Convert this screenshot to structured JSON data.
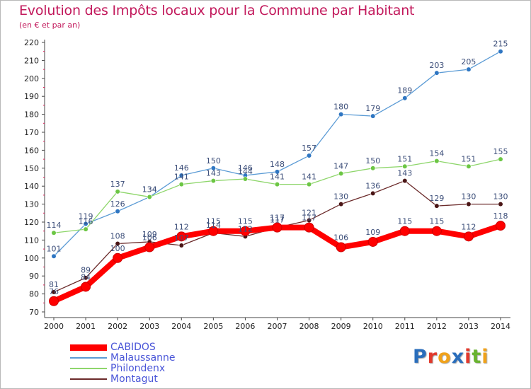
{
  "header": {
    "title": "Evolution des Impôts locaux pour la Commune par Habitant",
    "subtitle": "(en € et par an)"
  },
  "logo": {
    "text": "Proxiti",
    "colors": [
      "#2a6ebc",
      "#e2392c",
      "#f0a21b",
      "#2a6ebc",
      "#e2392c",
      "#69b32f",
      "#f0a21b"
    ]
  },
  "chart_data": {
    "type": "line",
    "x": [
      2000,
      2001,
      2002,
      2003,
      2004,
      2005,
      2006,
      2007,
      2008,
      2009,
      2010,
      2011,
      2012,
      2013,
      2014
    ],
    "ylim": [
      70,
      220
    ],
    "yticks": [
      70,
      80,
      90,
      100,
      110,
      120,
      130,
      140,
      150,
      160,
      170,
      180,
      190,
      200,
      210,
      220
    ],
    "grid": false,
    "legend_position": "bottom-left",
    "series": [
      {
        "name": "Malaussanne",
        "color": "#5b9bd5",
        "values": [
          101,
          119,
          126,
          134,
          146,
          150,
          146,
          148,
          157,
          180,
          179,
          189,
          203,
          205,
          215
        ],
        "labels": [
          "101",
          "119",
          "126",
          "134",
          "146",
          "150",
          "146",
          "148",
          "157",
          "180",
          "179",
          "189",
          "203",
          "205",
          "215"
        ]
      },
      {
        "name": "Philondenx",
        "color": "#8ed66b",
        "values": [
          114,
          116,
          137,
          134,
          141,
          143,
          144,
          141,
          141,
          147,
          150,
          151,
          154,
          151,
          155
        ],
        "labels": [
          "114",
          "116",
          "137",
          "134",
          "141",
          "143",
          "144",
          "141",
          "141",
          "147",
          "150",
          "151",
          "154",
          "151",
          "155"
        ]
      },
      {
        "name": "Montagut",
        "color": "#6b2a2a",
        "values": [
          81,
          89,
          108,
          109,
          107,
          114,
          112,
          117,
          121,
          130,
          136,
          143,
          129,
          130,
          130
        ],
        "labels": [
          "81",
          "89",
          "108",
          "109",
          "107",
          "114",
          "112",
          "117",
          "121",
          "130",
          "136",
          "143",
          "129",
          "130",
          "130"
        ]
      },
      {
        "name": "CABIDOS",
        "color": "#ff0000",
        "values": [
          76,
          84,
          100,
          106,
          112,
          115,
          115,
          117,
          117,
          106,
          109,
          115,
          115,
          112,
          118
        ],
        "labels": [
          "76",
          "84",
          "100",
          "106",
          "112",
          "115",
          "115",
          "117",
          "117",
          "106",
          "109",
          "115",
          "115",
          "112",
          "118"
        ]
      }
    ],
    "legend": [
      "CABIDOS",
      "Malaussanne",
      "Philondenx",
      "Montagut"
    ]
  }
}
